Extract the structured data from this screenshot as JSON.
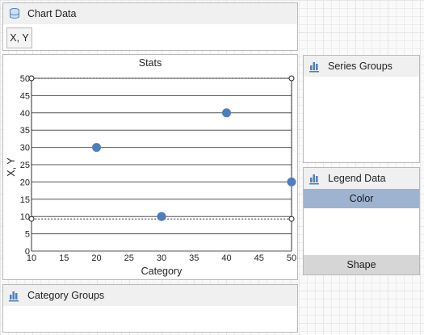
{
  "chart_data_panel": {
    "title": "Chart Data",
    "field_label": "X, Y"
  },
  "series_groups_panel": {
    "title": "Series Groups"
  },
  "legend_data_panel": {
    "title": "Legend Data",
    "color_label": "Color",
    "shape_label": "Shape"
  },
  "category_groups_panel": {
    "title": "Category Groups"
  },
  "colors": {
    "marker": "#4f7dbd",
    "legend_color_bg": "#9db3cf",
    "panel_header_bg": "#f0f0f0"
  },
  "chart_data": {
    "type": "scatter",
    "title": "Stats",
    "xlabel": "Category",
    "ylabel": "X, Y",
    "xlim": [
      10,
      50
    ],
    "ylim": [
      0,
      50
    ],
    "xticks": [
      10,
      15,
      20,
      25,
      30,
      35,
      40,
      45,
      50
    ],
    "yticks": [
      0,
      5,
      10,
      15,
      20,
      25,
      30,
      35,
      40,
      45,
      50
    ],
    "grid": "horizontal",
    "series": [
      {
        "points": [
          {
            "x": 20,
            "y": 30
          },
          {
            "x": 30,
            "y": 10
          },
          {
            "x": 40,
            "y": 40
          },
          {
            "x": 50,
            "y": 20
          }
        ]
      }
    ]
  }
}
